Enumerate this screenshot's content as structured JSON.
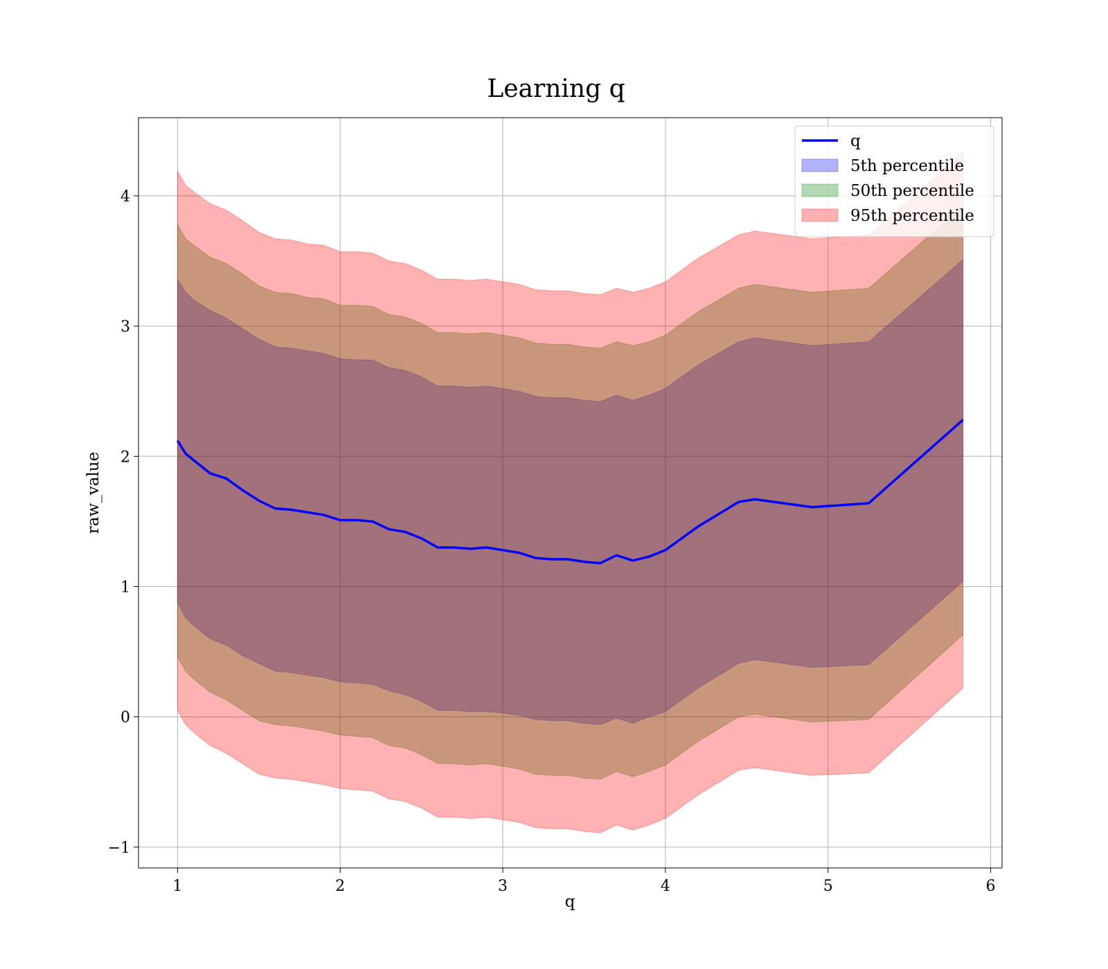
{
  "chart_data": {
    "type": "line",
    "title": "Learning q",
    "xlabel": "q",
    "ylabel": "raw_value",
    "xlim": [
      0.76,
      6.07
    ],
    "ylim": [
      -1.16,
      4.6
    ],
    "x_ticks": [
      1,
      2,
      3,
      4,
      5,
      6
    ],
    "x_tick_labels": [
      "1",
      "2",
      "3",
      "4",
      "5",
      "6"
    ],
    "y_ticks": [
      -1,
      0,
      1,
      2,
      3,
      4
    ],
    "y_tick_labels": [
      "−1",
      "0",
      "1",
      "2",
      "3",
      "4"
    ],
    "grid": true,
    "legend_position": "top-right",
    "x": [
      1.0,
      1.05,
      1.1,
      1.2,
      1.3,
      1.4,
      1.5,
      1.6,
      1.7,
      1.8,
      1.9,
      2.0,
      2.1,
      2.2,
      2.3,
      2.4,
      2.5,
      2.6,
      2.7,
      2.8,
      2.9,
      3.0,
      3.1,
      3.2,
      3.3,
      3.4,
      3.5,
      3.6,
      3.7,
      3.8,
      3.9,
      4.0,
      4.2,
      4.45,
      4.55,
      4.9,
      5.25,
      5.83
    ],
    "series": [
      {
        "name": "q",
        "kind": "line",
        "color": "#0000ff",
        "values": [
          2.12,
          2.02,
          1.97,
          1.87,
          1.83,
          1.74,
          1.66,
          1.6,
          1.59,
          1.57,
          1.55,
          1.51,
          1.51,
          1.5,
          1.44,
          1.42,
          1.37,
          1.3,
          1.3,
          1.29,
          1.3,
          1.28,
          1.26,
          1.22,
          1.21,
          1.21,
          1.19,
          1.18,
          1.24,
          1.2,
          1.23,
          1.28,
          1.46,
          1.65,
          1.67,
          1.61,
          1.64,
          2.28
        ]
      },
      {
        "name": "5th percentile",
        "kind": "band",
        "color": "#0000ff",
        "lower": [
          0.88,
          0.76,
          0.7,
          0.6,
          0.55,
          0.47,
          0.41,
          0.35,
          0.34,
          0.32,
          0.3,
          0.27,
          0.26,
          0.25,
          0.2,
          0.17,
          0.12,
          0.05,
          0.05,
          0.04,
          0.04,
          0.03,
          0.01,
          -0.02,
          -0.03,
          -0.03,
          -0.05,
          -0.06,
          -0.01,
          -0.05,
          0.0,
          0.04,
          0.22,
          0.41,
          0.44,
          0.38,
          0.4,
          1.04
        ],
        "upper": [
          3.36,
          3.26,
          3.2,
          3.12,
          3.06,
          2.98,
          2.9,
          2.84,
          2.83,
          2.81,
          2.79,
          2.75,
          2.74,
          2.74,
          2.68,
          2.66,
          2.61,
          2.54,
          2.54,
          2.53,
          2.54,
          2.52,
          2.5,
          2.46,
          2.45,
          2.45,
          2.43,
          2.42,
          2.47,
          2.43,
          2.47,
          2.52,
          2.7,
          2.88,
          2.91,
          2.85,
          2.88,
          3.51
        ]
      },
      {
        "name": "50th percentile",
        "kind": "band",
        "color": "#008000",
        "lower": [
          0.46,
          0.35,
          0.29,
          0.19,
          0.13,
          0.05,
          -0.03,
          -0.06,
          -0.07,
          -0.09,
          -0.11,
          -0.14,
          -0.15,
          -0.16,
          -0.22,
          -0.24,
          -0.29,
          -0.36,
          -0.36,
          -0.37,
          -0.36,
          -0.38,
          -0.4,
          -0.44,
          -0.45,
          -0.45,
          -0.47,
          -0.48,
          -0.42,
          -0.46,
          -0.42,
          -0.37,
          -0.19,
          0.0,
          0.02,
          -0.04,
          -0.02,
          0.63
        ],
        "upper": [
          3.78,
          3.67,
          3.62,
          3.53,
          3.48,
          3.4,
          3.31,
          3.26,
          3.25,
          3.22,
          3.21,
          3.16,
          3.16,
          3.15,
          3.09,
          3.07,
          3.02,
          2.95,
          2.95,
          2.94,
          2.95,
          2.93,
          2.91,
          2.87,
          2.86,
          2.86,
          2.84,
          2.83,
          2.88,
          2.85,
          2.88,
          2.93,
          3.11,
          3.29,
          3.32,
          3.26,
          3.29,
          3.92
        ]
      },
      {
        "name": "95th percentile",
        "kind": "band",
        "color": "#ff0000",
        "lower": [
          0.05,
          -0.06,
          -0.12,
          -0.22,
          -0.28,
          -0.36,
          -0.44,
          -0.47,
          -0.48,
          -0.5,
          -0.52,
          -0.55,
          -0.56,
          -0.57,
          -0.63,
          -0.65,
          -0.7,
          -0.77,
          -0.77,
          -0.78,
          -0.77,
          -0.79,
          -0.81,
          -0.85,
          -0.86,
          -0.86,
          -0.88,
          -0.89,
          -0.83,
          -0.87,
          -0.83,
          -0.78,
          -0.6,
          -0.41,
          -0.39,
          -0.45,
          -0.43,
          0.22
        ],
        "upper": [
          4.19,
          4.08,
          4.03,
          3.94,
          3.89,
          3.81,
          3.72,
          3.67,
          3.66,
          3.63,
          3.62,
          3.57,
          3.57,
          3.56,
          3.5,
          3.48,
          3.43,
          3.36,
          3.36,
          3.35,
          3.36,
          3.34,
          3.32,
          3.28,
          3.27,
          3.27,
          3.25,
          3.24,
          3.29,
          3.26,
          3.29,
          3.34,
          3.52,
          3.7,
          3.73,
          3.67,
          3.7,
          4.33
        ]
      }
    ]
  }
}
